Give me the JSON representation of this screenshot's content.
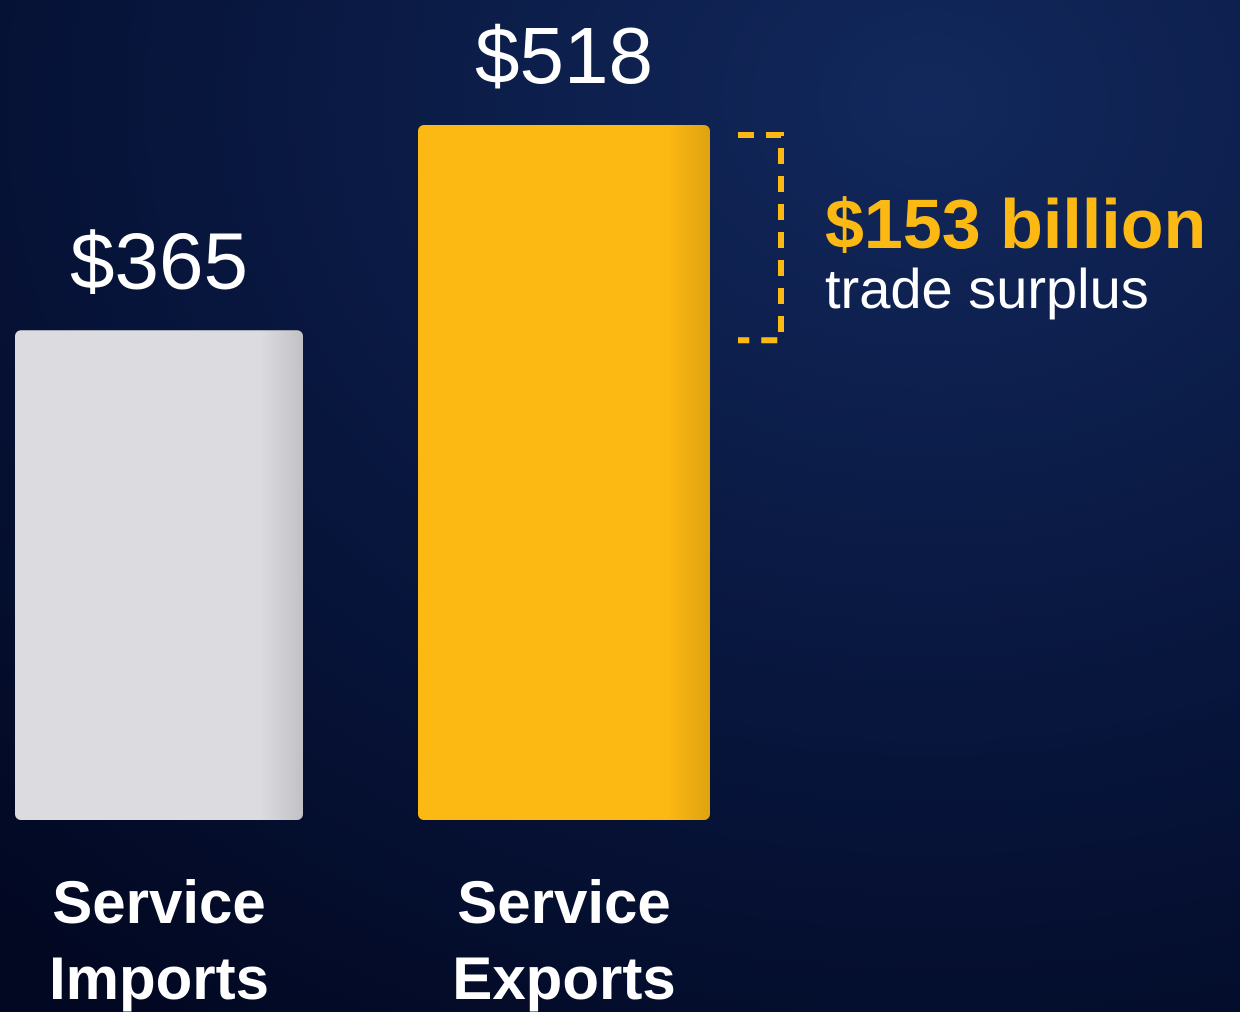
{
  "chart_data": {
    "type": "bar",
    "categories": [
      "Service Imports",
      "Service Exports"
    ],
    "values": [
      365,
      518
    ],
    "value_labels": [
      "$365",
      "$518"
    ],
    "colors": [
      "#dcdce0",
      "#fdb913"
    ],
    "annotation": {
      "headline": "$153 billion",
      "text": "trade surplus",
      "color": "#fdb913"
    }
  }
}
